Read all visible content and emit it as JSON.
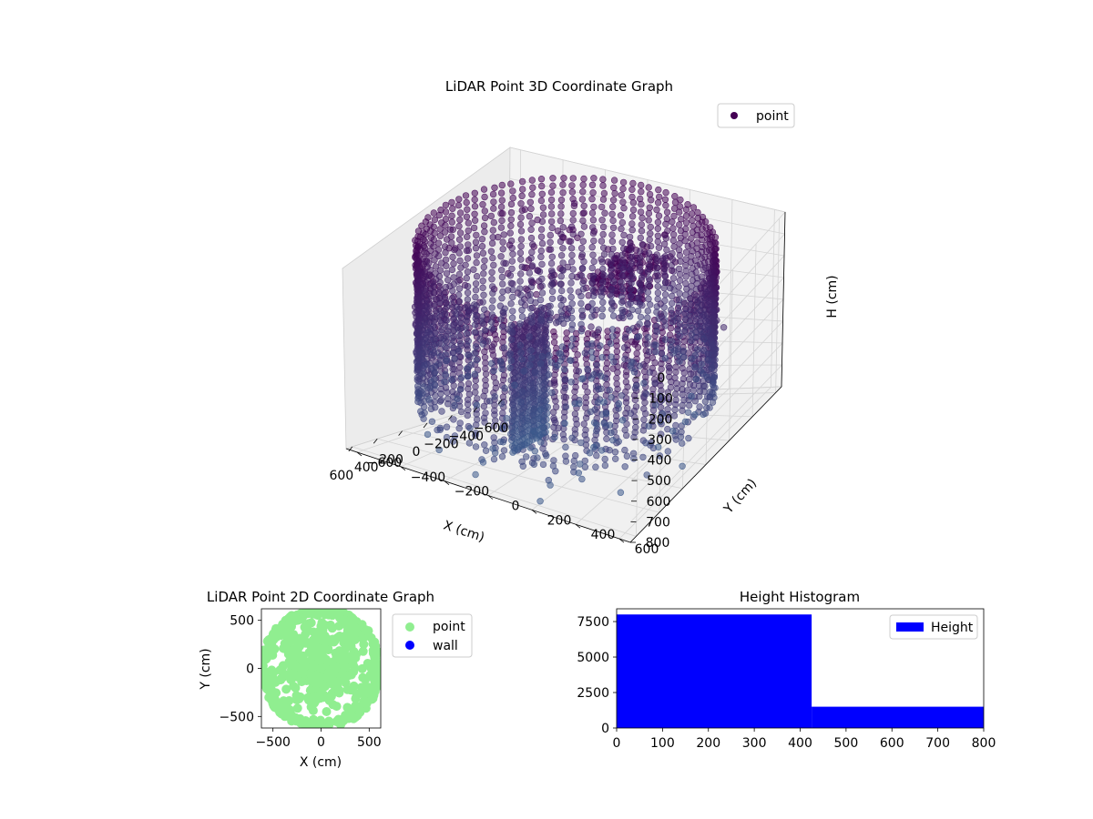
{
  "chart_data": [
    {
      "type": "scatter",
      "projection": "3d",
      "title": "LiDAR Point 3D Coordinate Graph",
      "xlabel": "X (cm)",
      "ylabel": "Y (cm)",
      "zlabel": "H (cm)",
      "x_ticks": [
        "−600",
        "−400",
        "−200",
        "0",
        "200",
        "400",
        "600"
      ],
      "y_ticks": [
        "−600",
        "−400",
        "−200",
        "0",
        "200",
        "400",
        "600"
      ],
      "z_ticks": [
        "0",
        "100",
        "200",
        "300",
        "400",
        "500",
        "600",
        "700",
        "800"
      ],
      "xlim": [
        -650,
        650
      ],
      "ylim": [
        -650,
        650
      ],
      "zlim": [
        800,
        0
      ],
      "grid": true,
      "legend": {
        "position": "top-right",
        "entries": [
          "point"
        ]
      },
      "series": [
        {
          "name": "point",
          "color": "#440154",
          "shapes": [
            {
              "kind": "ring",
              "radius": 600,
              "h_from": 0,
              "h_to": 500
            },
            {
              "kind": "wall-segment",
              "x_from": -100,
              "x_to": 200,
              "y": -150,
              "h_from": 300,
              "h_to": 800
            }
          ]
        }
      ]
    },
    {
      "type": "scatter",
      "title": "LiDAR Point 2D Coordinate Graph",
      "xlabel": "X (cm)",
      "ylabel": "Y (cm)",
      "x_ticks": [
        "−500",
        "0",
        "500"
      ],
      "y_ticks": [
        "500",
        "0",
        "−500"
      ],
      "xlim": [
        -620,
        620
      ],
      "ylim": [
        -620,
        620
      ],
      "legend": {
        "position": "outside-right",
        "entries": [
          "point",
          "wall"
        ]
      },
      "series": [
        {
          "name": "point",
          "color": "#90ee90"
        },
        {
          "name": "wall",
          "color": "#0000ff"
        }
      ]
    },
    {
      "type": "bar",
      "title": "Height Histogram",
      "x_ticks": [
        "0",
        "100",
        "200",
        "300",
        "400",
        "500",
        "600",
        "700",
        "800"
      ],
      "y_ticks": [
        "0",
        "2500",
        "5000",
        "7500"
      ],
      "xlim": [
        0,
        800
      ],
      "ylim": [
        0,
        8400
      ],
      "legend": {
        "position": "top-right",
        "entries": [
          "Height"
        ]
      },
      "series": [
        {
          "name": "Height",
          "color": "#0000ff",
          "bins": [
            {
              "from": 0,
              "to": 425,
              "count": 8000
            },
            {
              "from": 425,
              "to": 800,
              "count": 1500
            }
          ]
        }
      ]
    }
  ]
}
